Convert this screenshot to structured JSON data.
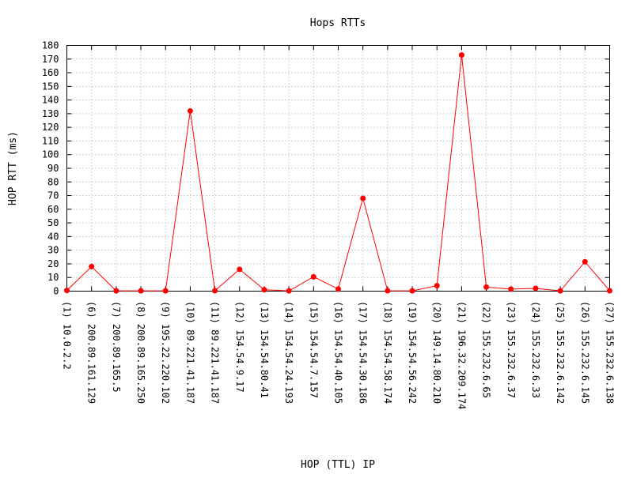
{
  "chart_data": {
    "type": "line",
    "title": "Hops RTTs",
    "xlabel": "HOP (TTL) IP",
    "ylabel": "HOP RTT (ms)",
    "ylim": [
      0,
      180
    ],
    "yticks": [
      0,
      10,
      20,
      30,
      40,
      50,
      60,
      70,
      80,
      90,
      100,
      110,
      120,
      130,
      140,
      150,
      160,
      170,
      180
    ],
    "grid": true,
    "categories": [
      "(1) 10.0.2.2",
      "(6) 200.89.161.129",
      "(7) 200.89.165.5",
      "(8) 200.89.165.250",
      "(9) 195.22.220.102",
      "(10) 89.221.41.187",
      "(11) 89.221.41.187",
      "(12) 154.54.9.17",
      "(13) 154.54.80.41",
      "(14) 154.54.24.193",
      "(15) 154.54.7.157",
      "(16) 154.54.40.105",
      "(17) 154.54.30.186",
      "(18) 154.54.58.174",
      "(19) 154.54.56.242",
      "(20) 149.14.80.210",
      "(21) 196.32.209.174",
      "(22) 155.232.6.65",
      "(23) 155.232.6.37",
      "(24) 155.232.6.33",
      "(25) 155.232.6.142",
      "(26) 155.232.6.145",
      "(27) 155.232.6.138"
    ],
    "series": [
      {
        "color": "#ff0000",
        "values": [
          0.5,
          18,
          0.2,
          0.2,
          0.2,
          132,
          0.3,
          16,
          1,
          0.2,
          10.5,
          1.5,
          68,
          0.3,
          0.2,
          4,
          173,
          3,
          1.5,
          2,
          0.2,
          21.5,
          0.3
        ]
      }
    ]
  }
}
